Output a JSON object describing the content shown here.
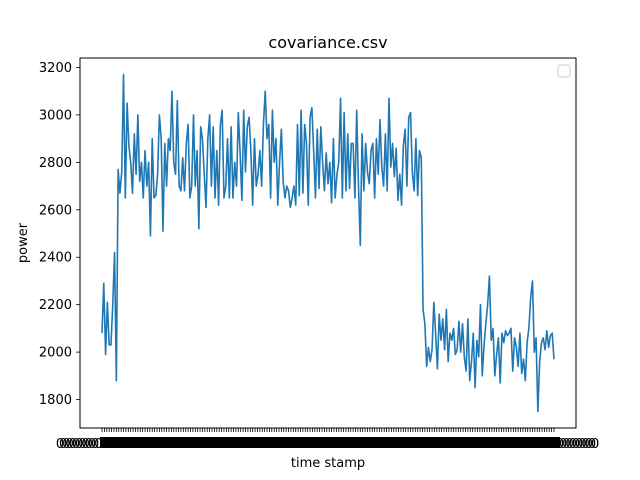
{
  "chart_data": {
    "type": "line",
    "title": "covariance.csv",
    "xlabel": "time stamp",
    "ylabel": "power",
    "ylim": [
      1680,
      3240
    ],
    "y_ticks": [
      1800,
      2000,
      2200,
      2400,
      2600,
      2800,
      3000,
      3200
    ],
    "legend": {
      "placement": "top-right",
      "entries": []
    },
    "grid": false,
    "x_tick_count": 190,
    "series": [
      {
        "color": "#1f77b4",
        "values": [
          2080,
          2290,
          1990,
          2210,
          2030,
          2030,
          2200,
          2420,
          1880,
          2770,
          2670,
          2760,
          3170,
          2650,
          3050,
          2870,
          2800,
          2670,
          2920,
          2750,
          3000,
          2720,
          2800,
          2650,
          2850,
          2700,
          2800,
          2490,
          2900,
          2650,
          2660,
          2750,
          3000,
          2900,
          2510,
          2880,
          2700,
          2900,
          2850,
          3100,
          2800,
          2750,
          3060,
          2700,
          2680,
          2820,
          2680,
          2880,
          2960,
          2650,
          2700,
          3000,
          2700,
          2850,
          2520,
          2950,
          2900,
          2750,
          2610,
          2900,
          3000,
          2700,
          2950,
          2650,
          2850,
          2620,
          2960,
          3020,
          2650,
          2700,
          2900,
          2650,
          2950,
          2650,
          2800,
          2700,
          3010,
          2840,
          2640,
          3020,
          2760,
          2950,
          2990,
          2850,
          2620,
          2900,
          2700,
          2750,
          2850,
          2700,
          2960,
          3100,
          2900,
          2960,
          2650,
          3020,
          2800,
          2900,
          2620,
          2800,
          2940,
          2720,
          2650,
          2700,
          2680,
          2610,
          2650,
          2700,
          2620,
          2960,
          2660,
          3020,
          2670,
          2960,
          2880,
          2620,
          2990,
          3030,
          2850,
          2650,
          2940,
          2690,
          2950,
          2800,
          2680,
          2840,
          2710,
          2800,
          2630,
          2900,
          2650,
          2750,
          2800,
          3070,
          2650,
          3010,
          2680,
          2920,
          2690,
          2880,
          2880,
          2650,
          3020,
          2700,
          2450,
          2920,
          2680,
          2880,
          2760,
          2710,
          2850,
          2880,
          2650,
          2900,
          2750,
          2980,
          2780,
          2700,
          2920,
          2680,
          3070,
          2780,
          2880,
          2740,
          2860,
          2640,
          2750,
          2620,
          2870,
          2940,
          2700,
          2990,
          3010,
          2760,
          2680,
          2900,
          2660,
          2850,
          2820,
          2180,
          2120,
          1940,
          2020,
          1960,
          2010,
          2210,
          2080,
          1930,
          2160,
          2050,
          2140,
          2010,
          2180,
          1960,
          2080,
          2050,
          2100,
          1990,
          2010,
          2130,
          2000,
          2120,
          1980,
          1920,
          2140,
          1880,
          1960,
          2080,
          1850,
          2050,
          1980,
          2200,
          1900,
          2030,
          2120,
          2200,
          2320,
          2050,
          2100,
          1900,
          1990,
          2060,
          1870,
          2080,
          2040,
          2090,
          2070,
          2080,
          2100,
          1920,
          2060,
          2020,
          1940,
          2080,
          1910,
          1970,
          1880,
          2040,
          2100,
          2230,
          2300,
          2000,
          2060,
          1750,
          1960,
          2040,
          2060,
          2010,
          2090,
          2020,
          2070,
          2080,
          1970
        ]
      }
    ]
  }
}
